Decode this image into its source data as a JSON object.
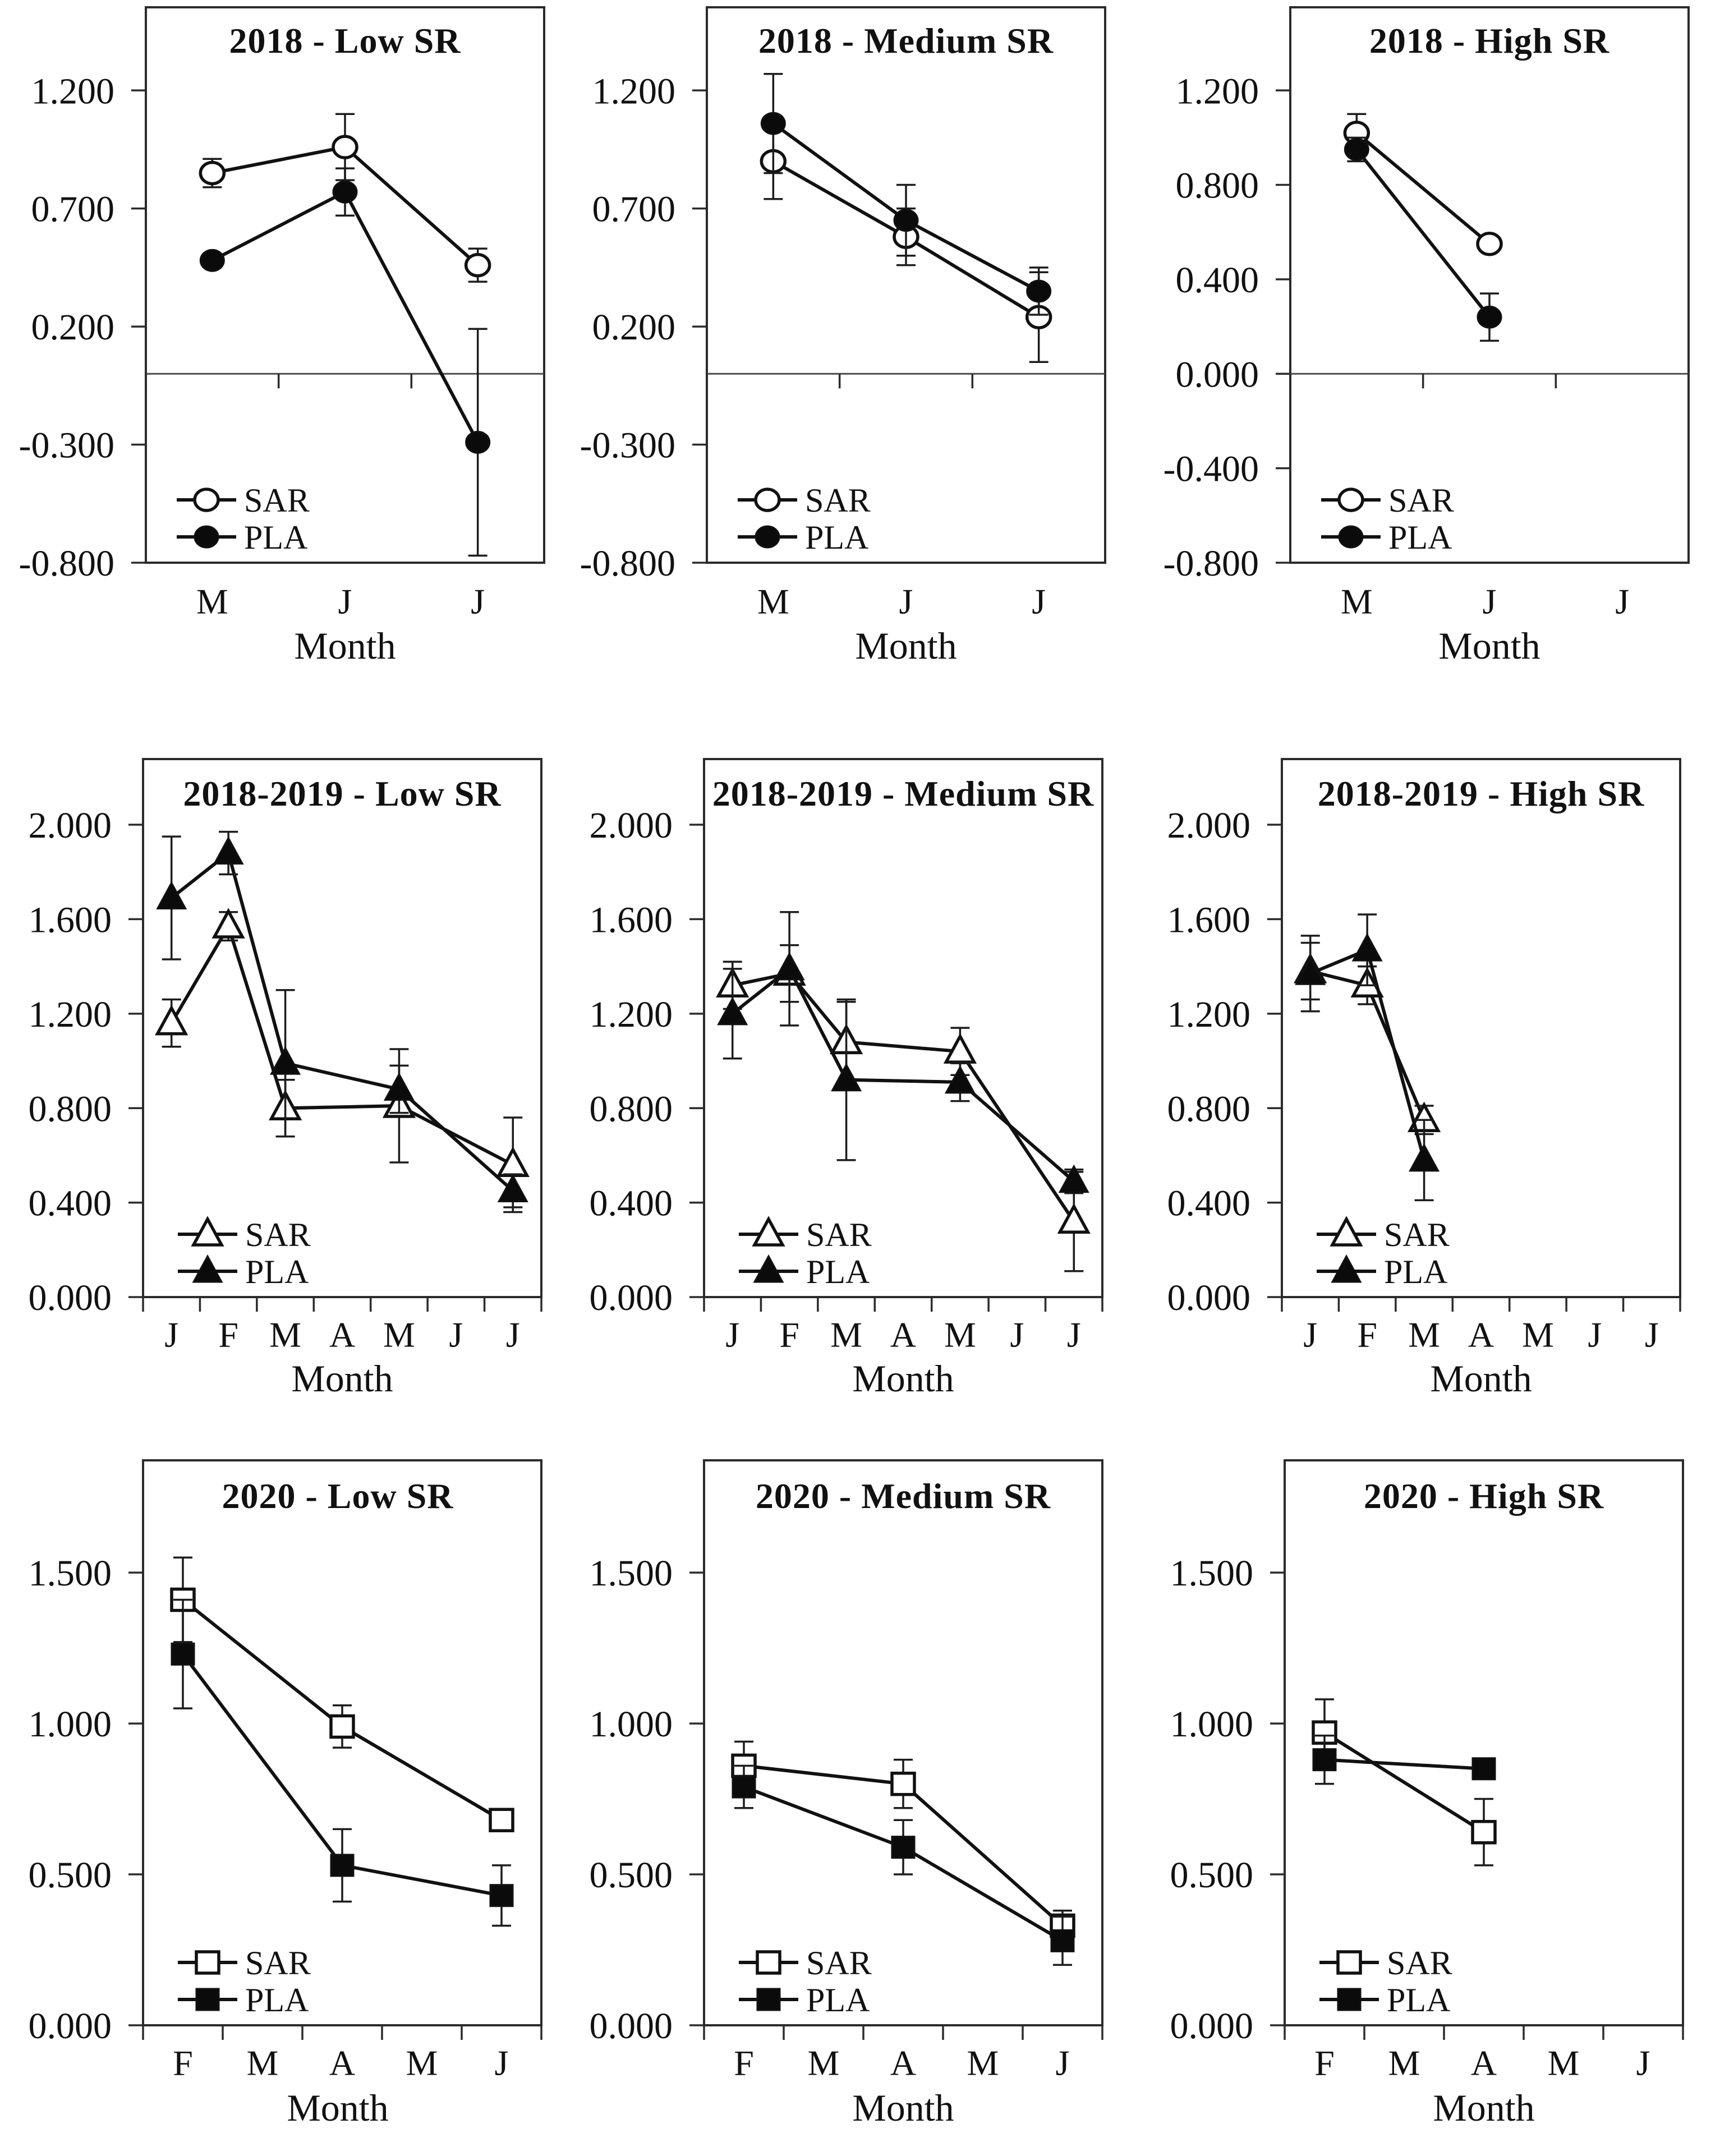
{
  "figure": {
    "description": "3x3 grid of line charts comparing SAR and PLA by month for Low/Medium/High SR across 2018, 2018-2019 and 2020 seasons",
    "series_names": [
      "SAR",
      "PLA"
    ],
    "x_axis_label": "Month",
    "line_color": "#111111",
    "background": "#ffffff"
  },
  "chart_data": [
    {
      "type": "line",
      "title": "2018 - Low SR",
      "xlabel": "Month",
      "marker": "circle",
      "categories": [
        "M",
        "J",
        "J"
      ],
      "ylim": [
        -0.8,
        1.552
      ],
      "yticks": [
        1.2,
        0.7,
        0.2,
        -0.3,
        -0.8
      ],
      "ytick_labels": [
        "1.200",
        "0.700",
        "0.200",
        "-0.300",
        "-0.800"
      ],
      "axis_at_zero": true,
      "legend": [
        "SAR",
        "PLA"
      ],
      "series": [
        {
          "name": "SAR",
          "style": "open",
          "x": [
            0,
            1,
            2
          ],
          "y": [
            0.85,
            0.96,
            0.46
          ],
          "err": [
            0.06,
            0.14,
            0.07
          ]
        },
        {
          "name": "PLA",
          "style": "filled",
          "x": [
            0,
            1,
            2
          ],
          "y": [
            0.48,
            0.77,
            -0.29
          ],
          "err": [
            0,
            0.1,
            0.48
          ]
        }
      ]
    },
    {
      "type": "line",
      "title": "2018 - Medium SR",
      "xlabel": "Month",
      "marker": "circle",
      "categories": [
        "M",
        "J",
        "J"
      ],
      "ylim": [
        -0.8,
        1.552
      ],
      "yticks": [
        1.2,
        0.7,
        0.2,
        -0.3,
        -0.8
      ],
      "ytick_labels": [
        "1.200",
        "0.700",
        "0.200",
        "-0.300",
        "-0.800"
      ],
      "axis_at_zero": true,
      "legend": [
        "SAR",
        "PLA"
      ],
      "series": [
        {
          "name": "SAR",
          "style": "open",
          "x": [
            0,
            1,
            2
          ],
          "y": [
            0.9,
            0.58,
            0.24
          ],
          "err": [
            0.16,
            0.12,
            0.19
          ]
        },
        {
          "name": "PLA",
          "style": "filled",
          "x": [
            0,
            1,
            2
          ],
          "y": [
            1.06,
            0.65,
            0.35
          ],
          "err": [
            0.21,
            0.15,
            0.1
          ]
        }
      ]
    },
    {
      "type": "line",
      "title": "2018 - High SR",
      "xlabel": "Month",
      "marker": "circle",
      "categories": [
        "M",
        "J",
        "J"
      ],
      "ylim": [
        -0.8,
        1.552
      ],
      "yticks": [
        1.2,
        0.8,
        0.4,
        0.0,
        -0.4,
        -0.8
      ],
      "ytick_labels": [
        "1.200",
        "0.800",
        "0.400",
        "0.000",
        "-0.400",
        "-0.800"
      ],
      "axis_at_zero": true,
      "legend": [
        "SAR",
        "PLA"
      ],
      "series": [
        {
          "name": "SAR",
          "style": "open",
          "x": [
            0,
            1
          ],
          "y": [
            1.02,
            0.55
          ],
          "err": [
            0.08,
            0
          ]
        },
        {
          "name": "PLA",
          "style": "filled",
          "x": [
            0,
            1
          ],
          "y": [
            0.95,
            0.24
          ],
          "err": [
            0.05,
            0.1
          ]
        }
      ]
    },
    {
      "type": "line",
      "title": "2018-2019 - Low SR",
      "xlabel": "Month",
      "marker": "triangle",
      "categories": [
        "J",
        "F",
        "M",
        "A",
        "M",
        "J",
        "J"
      ],
      "ylim": [
        0,
        2.278
      ],
      "yticks": [
        2.0,
        1.6,
        1.2,
        0.8,
        0.4,
        0.0
      ],
      "ytick_labels": [
        "2.000",
        "1.600",
        "1.200",
        "0.800",
        "0.400",
        "0.000"
      ],
      "axis_at_zero": false,
      "legend": [
        "SAR",
        "PLA"
      ],
      "series": [
        {
          "name": "SAR",
          "style": "open",
          "x": [
            0,
            1,
            2,
            4,
            6
          ],
          "y": [
            1.16,
            1.57,
            0.8,
            0.81,
            0.56
          ],
          "err": [
            0.1,
            0.06,
            0.12,
            0.24,
            0.2
          ]
        },
        {
          "name": "PLA",
          "style": "filled",
          "x": [
            0,
            1,
            2,
            4,
            6
          ],
          "y": [
            1.69,
            1.88,
            0.99,
            0.88,
            0.45
          ],
          "err": [
            0.26,
            0.09,
            0.31,
            0.1,
            0.07
          ]
        }
      ]
    },
    {
      "type": "line",
      "title": "2018-2019 - Medium SR",
      "xlabel": "Month",
      "marker": "triangle",
      "categories": [
        "J",
        "F",
        "M",
        "A",
        "M",
        "J",
        "J"
      ],
      "ylim": [
        0,
        2.278
      ],
      "yticks": [
        2.0,
        1.6,
        1.2,
        0.8,
        0.4,
        0.0
      ],
      "ytick_labels": [
        "2.000",
        "1.600",
        "1.200",
        "0.800",
        "0.400",
        "0.000"
      ],
      "axis_at_zero": false,
      "legend": [
        "SAR",
        "PLA"
      ],
      "series": [
        {
          "name": "SAR",
          "style": "open",
          "x": [
            0,
            1,
            2,
            4,
            6
          ],
          "y": [
            1.32,
            1.37,
            1.08,
            1.04,
            0.32
          ],
          "err": [
            0.1,
            0.12,
            0.17,
            0.1,
            0.21
          ]
        },
        {
          "name": "PLA",
          "style": "filled",
          "x": [
            0,
            1,
            2,
            4,
            6
          ],
          "y": [
            1.2,
            1.39,
            0.92,
            0.91,
            0.49
          ],
          "err": [
            0.19,
            0.24,
            0.34,
            0.08,
            0.05
          ]
        }
      ]
    },
    {
      "type": "line",
      "title": "2018-2019 - High SR",
      "xlabel": "Month",
      "marker": "triangle",
      "categories": [
        "J",
        "F",
        "M",
        "A",
        "M",
        "J",
        "J"
      ],
      "ylim": [
        0,
        2.278
      ],
      "yticks": [
        2.0,
        1.6,
        1.2,
        0.8,
        0.4,
        0.0
      ],
      "ytick_labels": [
        "2.000",
        "1.600",
        "1.200",
        "0.800",
        "0.400",
        "0.000"
      ],
      "axis_at_zero": false,
      "legend": [
        "SAR",
        "PLA"
      ],
      "series": [
        {
          "name": "SAR",
          "style": "open",
          "x": [
            0,
            1,
            2
          ],
          "y": [
            1.38,
            1.32,
            0.75
          ],
          "err": [
            0.12,
            0.08,
            0.06
          ]
        },
        {
          "name": "PLA",
          "style": "filled",
          "x": [
            0,
            1,
            2
          ],
          "y": [
            1.37,
            1.47,
            0.58
          ],
          "err": [
            0.16,
            0.15,
            0.17
          ]
        }
      ]
    },
    {
      "type": "line",
      "title": "2020 - Low SR",
      "xlabel": "Month",
      "marker": "square",
      "categories": [
        "F",
        "M",
        "A",
        "M",
        "J"
      ],
      "ylim": [
        0,
        1.872
      ],
      "yticks": [
        1.5,
        1.0,
        0.5,
        0.0
      ],
      "ytick_labels": [
        "1.500",
        "1.000",
        "0.500",
        "0.000"
      ],
      "axis_at_zero": false,
      "legend": [
        "SAR",
        "PLA"
      ],
      "series": [
        {
          "name": "SAR",
          "style": "open",
          "x": [
            0,
            2,
            4
          ],
          "y": [
            1.41,
            0.99,
            0.68
          ],
          "err": [
            0.14,
            0.07,
            0
          ]
        },
        {
          "name": "PLA",
          "style": "filled",
          "x": [
            0,
            2,
            4
          ],
          "y": [
            1.23,
            0.53,
            0.43
          ],
          "err": [
            0.18,
            0.12,
            0.1
          ]
        }
      ]
    },
    {
      "type": "line",
      "title": "2020 - Medium SR",
      "xlabel": "Month",
      "marker": "square",
      "categories": [
        "F",
        "M",
        "A",
        "M",
        "J"
      ],
      "ylim": [
        0,
        1.872
      ],
      "yticks": [
        1.5,
        1.0,
        0.5,
        0.0
      ],
      "ytick_labels": [
        "1.500",
        "1.000",
        "0.500",
        "0.000"
      ],
      "axis_at_zero": false,
      "legend": [
        "SAR",
        "PLA"
      ],
      "series": [
        {
          "name": "SAR",
          "style": "open",
          "x": [
            0,
            2,
            4
          ],
          "y": [
            0.86,
            0.8,
            0.33
          ],
          "err": [
            0.08,
            0.08,
            0.05
          ]
        },
        {
          "name": "PLA",
          "style": "filled",
          "x": [
            0,
            2,
            4
          ],
          "y": [
            0.79,
            0.59,
            0.28
          ],
          "err": [
            0.07,
            0.09,
            0.08
          ]
        }
      ]
    },
    {
      "type": "line",
      "title": "2020 - High SR",
      "xlabel": "Month",
      "marker": "square",
      "categories": [
        "F",
        "M",
        "A",
        "M",
        "J"
      ],
      "ylim": [
        0,
        1.872
      ],
      "yticks": [
        1.5,
        1.0,
        0.5,
        0.0
      ],
      "ytick_labels": [
        "1.500",
        "1.000",
        "0.500",
        "0.000"
      ],
      "axis_at_zero": false,
      "legend": [
        "SAR",
        "PLA"
      ],
      "series": [
        {
          "name": "SAR",
          "style": "open",
          "x": [
            0,
            2
          ],
          "y": [
            0.97,
            0.64
          ],
          "err": [
            0.11,
            0.11
          ]
        },
        {
          "name": "PLA",
          "style": "filled",
          "x": [
            0,
            2
          ],
          "y": [
            0.88,
            0.85
          ],
          "err": [
            0.08,
            0
          ]
        }
      ]
    }
  ]
}
